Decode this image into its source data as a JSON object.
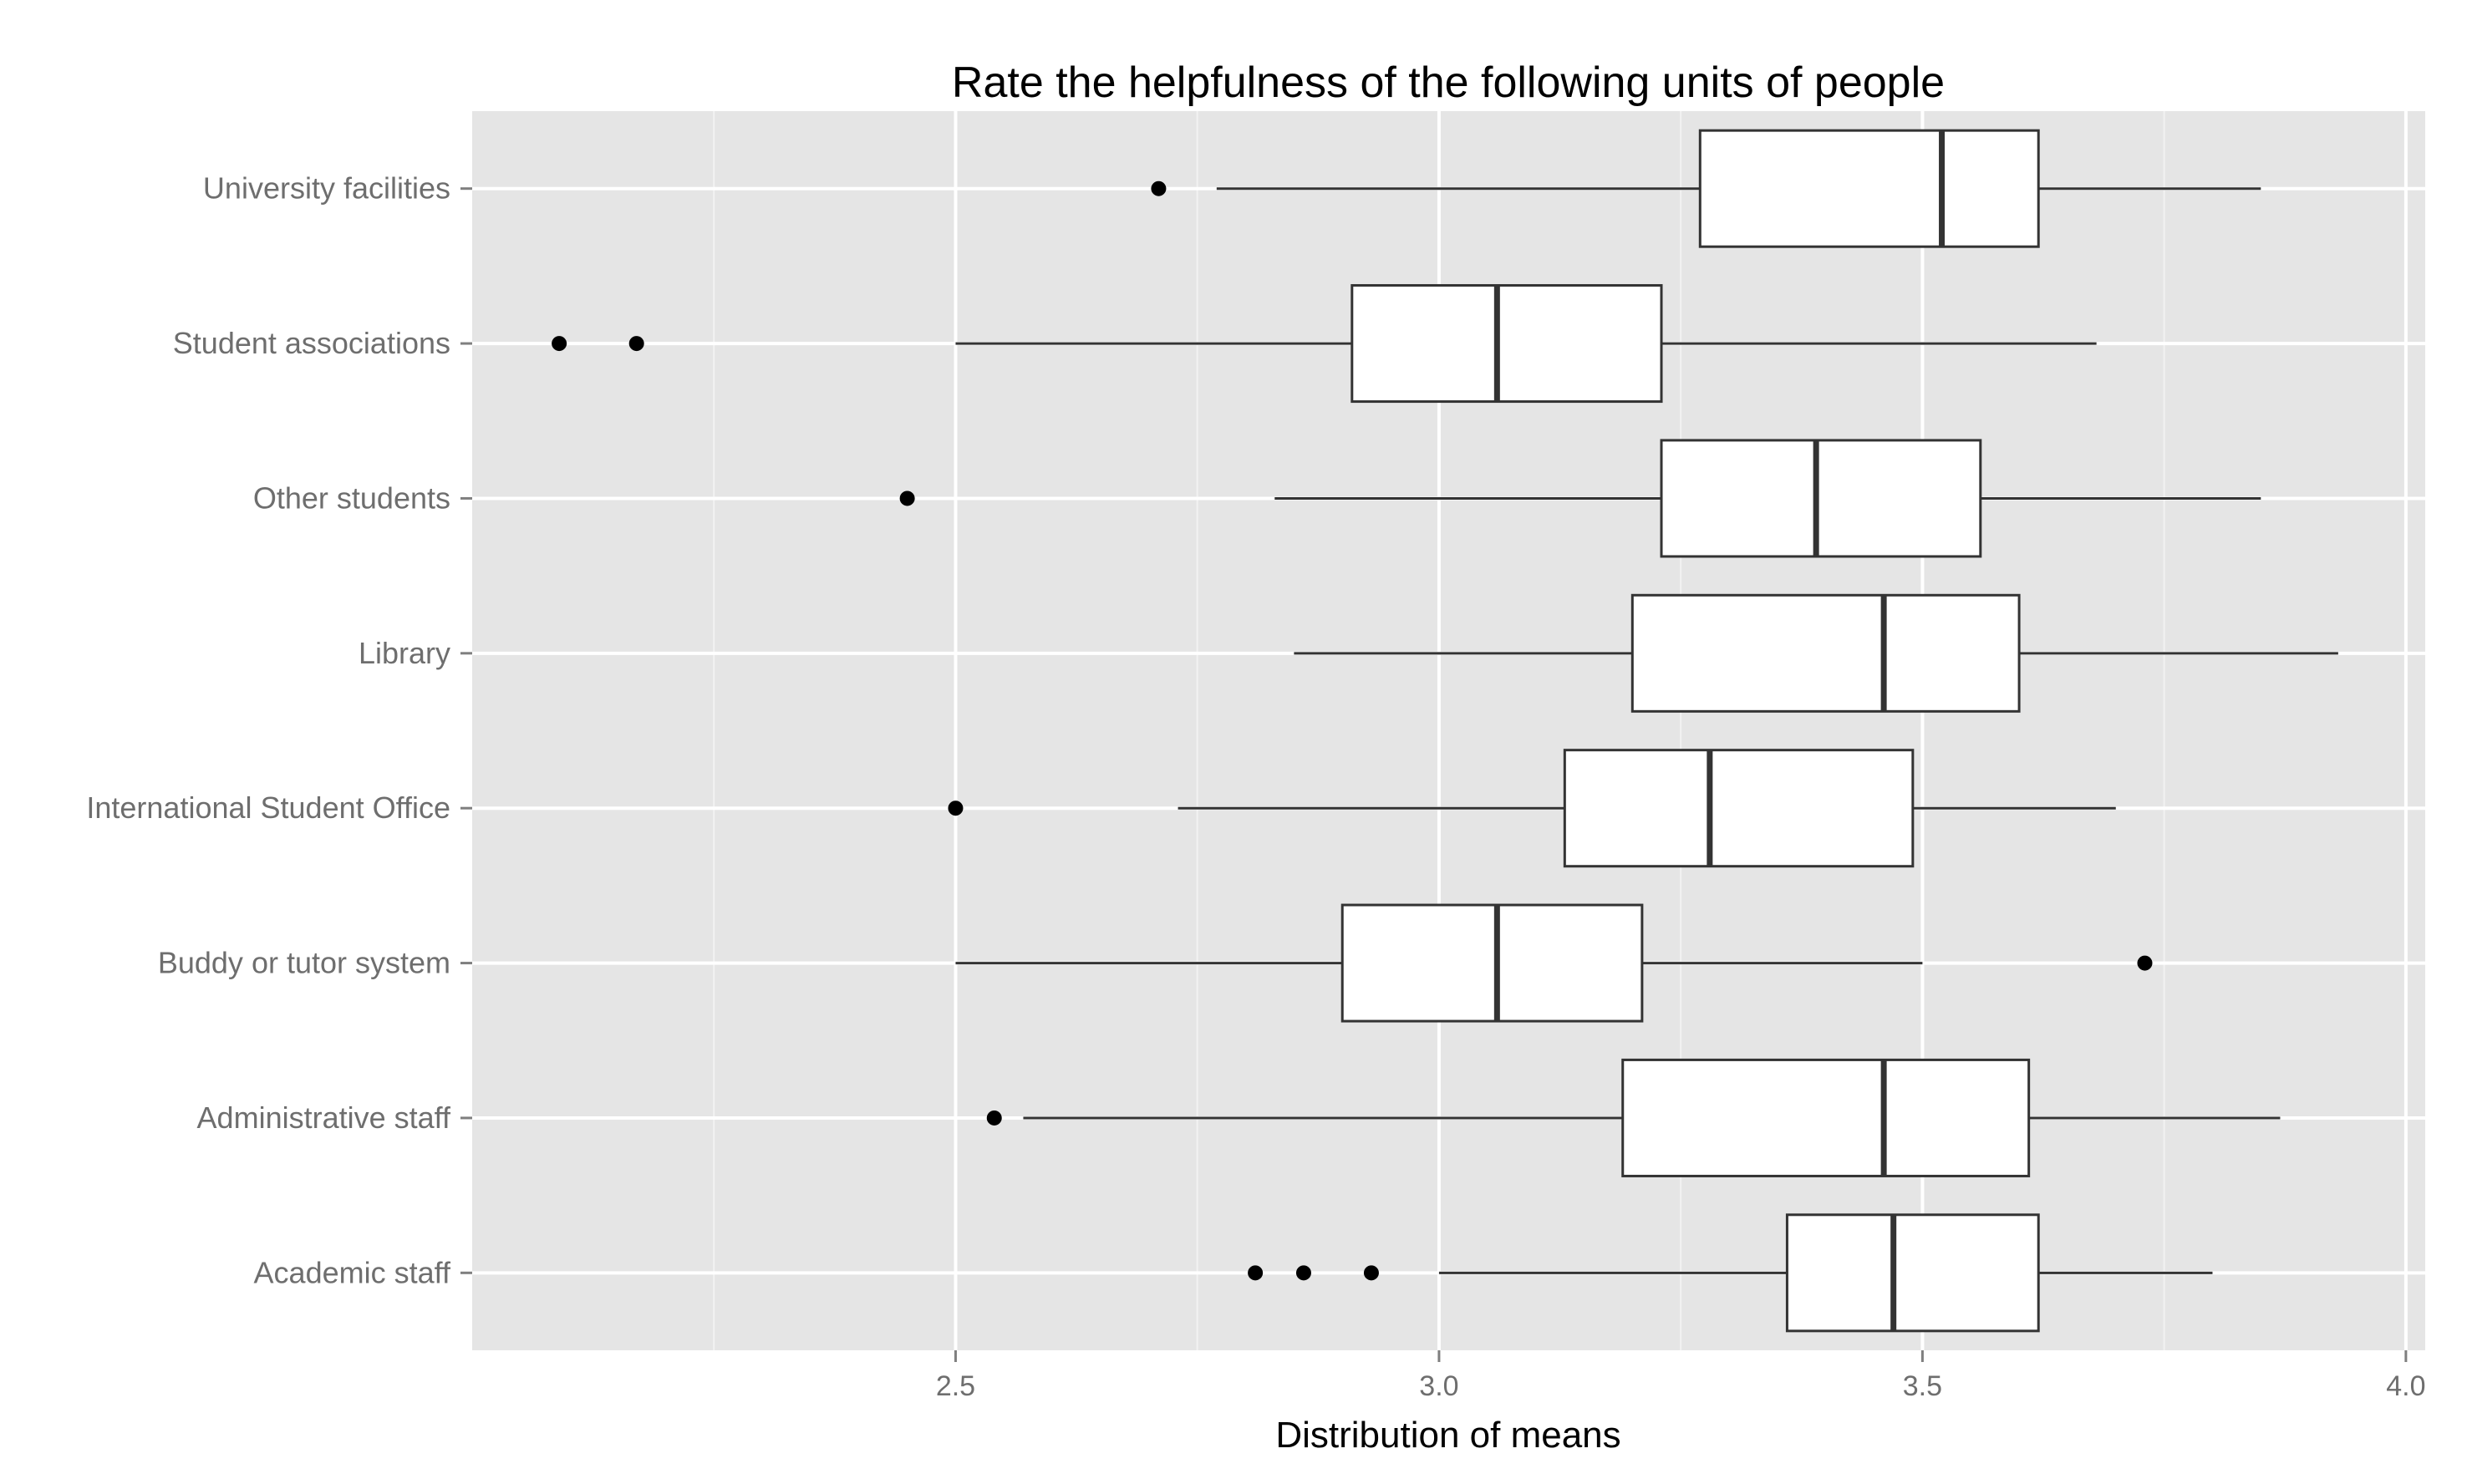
{
  "chart_data": {
    "type": "boxplot",
    "orientation": "horizontal",
    "title": "Rate the helpfulness of the following units of people",
    "xlabel": "Distribution of means",
    "ylabel": "",
    "xlim": [
      2.0,
      4.02
    ],
    "xticks": [
      2.5,
      3.0,
      3.5,
      4.0
    ],
    "xtick_labels": [
      "2.5",
      "3.0",
      "3.5",
      "4.0"
    ],
    "grid": true,
    "theme": "ggplot2-grey",
    "colors": {
      "panel": "#e5e5e5",
      "grid_major": "#ffffff",
      "grid_minor": "#f2f2f2",
      "box_fill": "#ffffff",
      "box_stroke": "#333333",
      "outlier": "#000000"
    },
    "categories": [
      "University facilities",
      "Student associations",
      "Other students",
      "Library",
      "International Student Office",
      "Buddy or tutor system",
      "Administrative staff",
      "Academic staff"
    ],
    "boxes": [
      {
        "category": "University facilities",
        "whisker_low": 2.77,
        "q1": 3.27,
        "median": 3.52,
        "q3": 3.62,
        "whisker_high": 3.85,
        "outliers": [
          2.71
        ]
      },
      {
        "category": "Student associations",
        "whisker_low": 2.5,
        "q1": 2.91,
        "median": 3.06,
        "q3": 3.23,
        "whisker_high": 3.68,
        "outliers": [
          2.09,
          2.17
        ]
      },
      {
        "category": "Other students",
        "whisker_low": 2.83,
        "q1": 3.23,
        "median": 3.39,
        "q3": 3.56,
        "whisker_high": 3.85,
        "outliers": [
          2.45
        ]
      },
      {
        "category": "Library",
        "whisker_low": 2.85,
        "q1": 3.2,
        "median": 3.46,
        "q3": 3.6,
        "whisker_high": 3.93,
        "outliers": []
      },
      {
        "category": "International Student Office",
        "whisker_low": 2.73,
        "q1": 3.13,
        "median": 3.28,
        "q3": 3.49,
        "whisker_high": 3.7,
        "outliers": [
          2.5
        ]
      },
      {
        "category": "Buddy or tutor system",
        "whisker_low": 2.5,
        "q1": 2.9,
        "median": 3.06,
        "q3": 3.21,
        "whisker_high": 3.5,
        "outliers": [
          3.73
        ]
      },
      {
        "category": "Administrative staff",
        "whisker_low": 2.57,
        "q1": 3.19,
        "median": 3.46,
        "q3": 3.61,
        "whisker_high": 3.87,
        "outliers": [
          2.54
        ]
      },
      {
        "category": "Academic staff",
        "whisker_low": 3.0,
        "q1": 3.36,
        "median": 3.47,
        "q3": 3.62,
        "whisker_high": 3.8,
        "outliers": [
          2.81,
          2.86,
          2.93
        ]
      }
    ]
  }
}
